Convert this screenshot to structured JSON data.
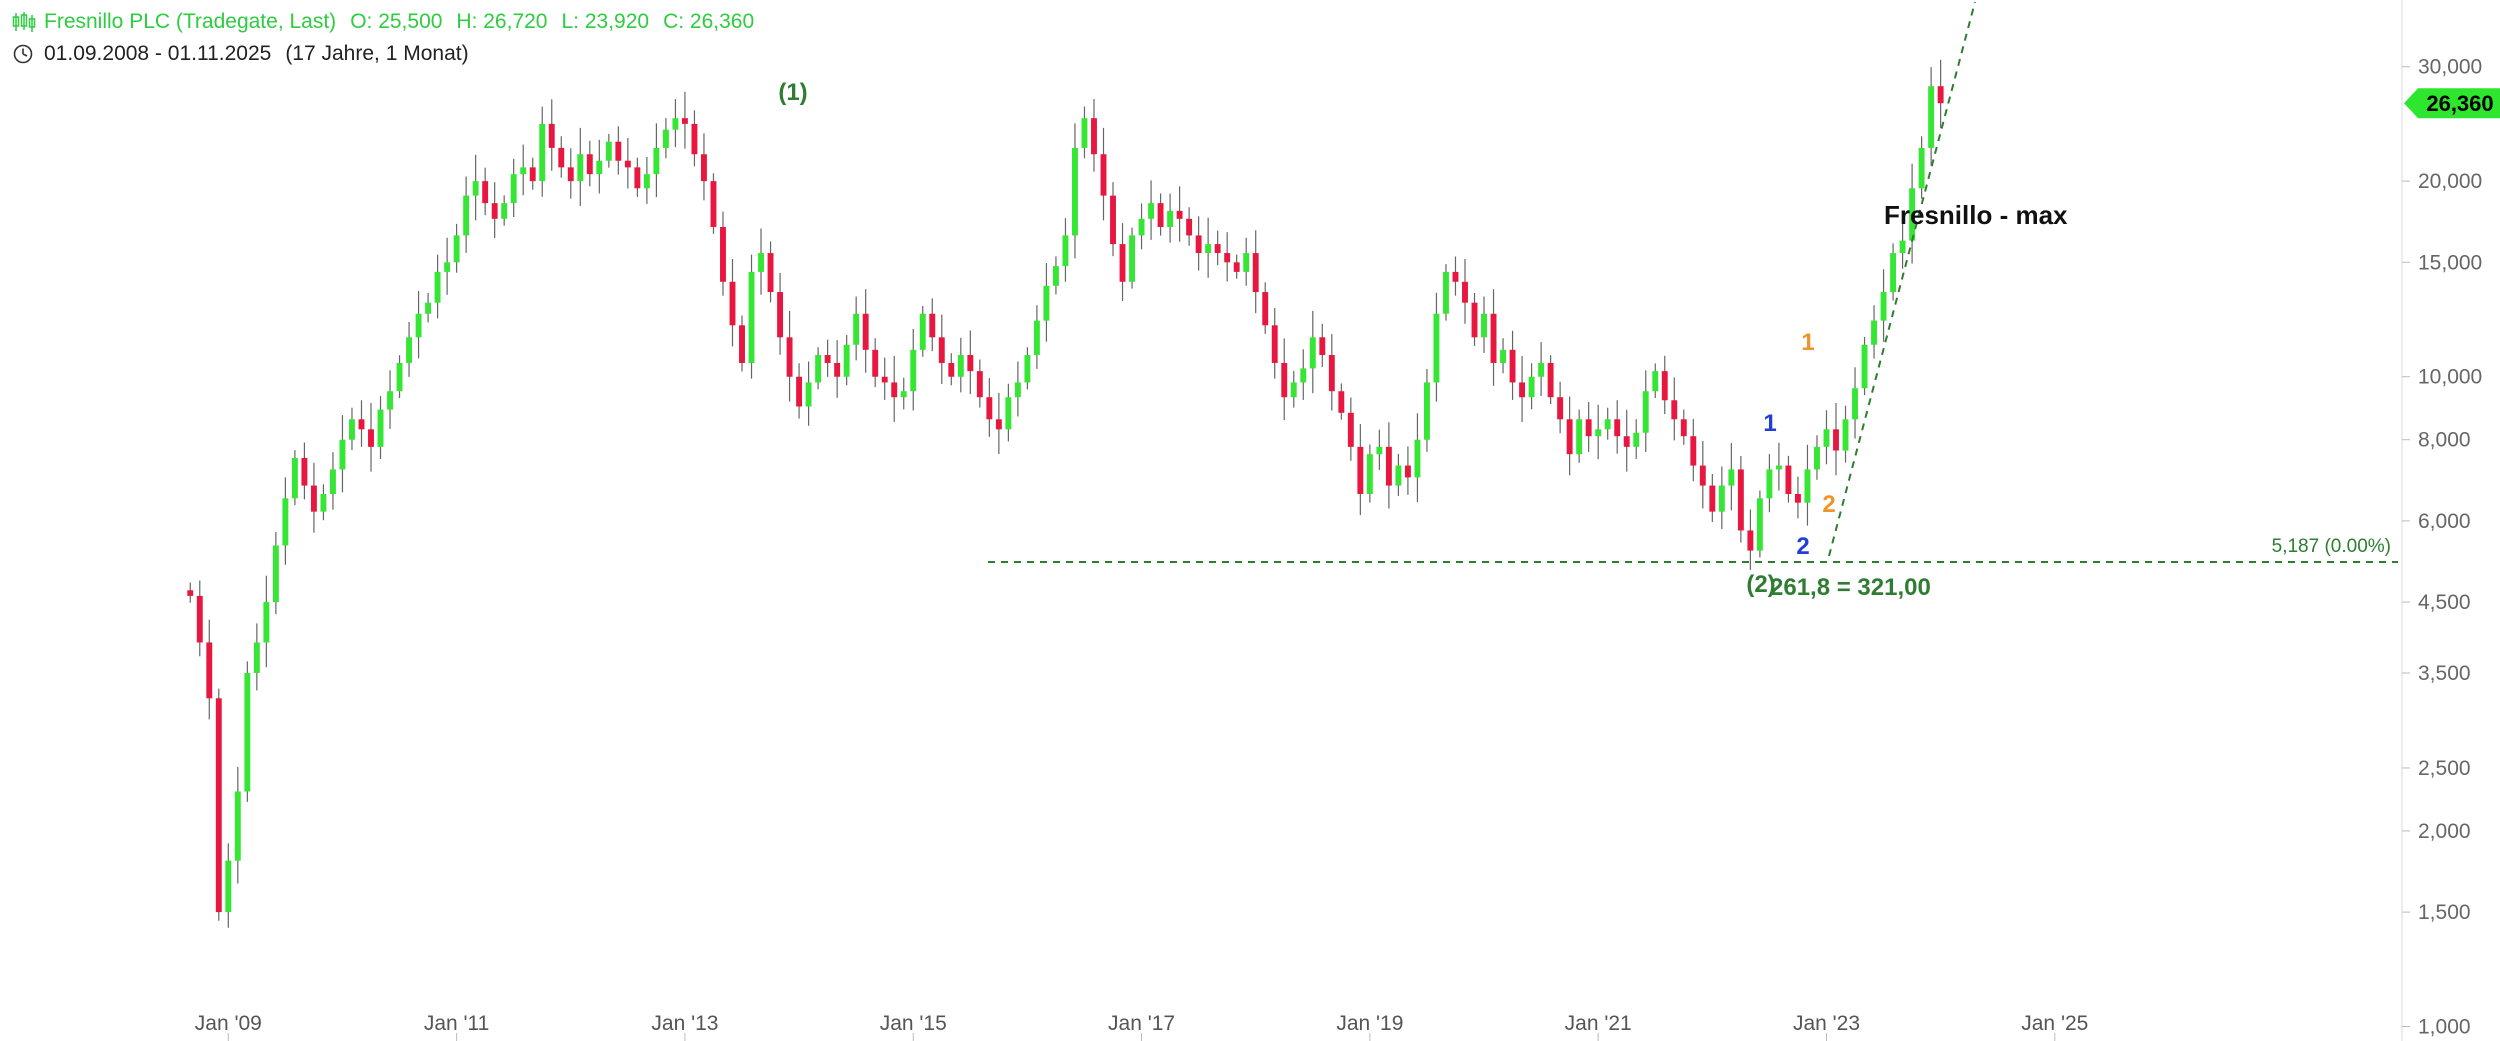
{
  "header": {
    "title": "Fresnillo PLC (Tradegate, Last)",
    "open": "O: 25,500",
    "high": "H: 26,720",
    "low": "L: 23,920",
    "close": "C: 26,360",
    "range": "01.09.2008 - 01.11.2025",
    "duration": "(17 Jahre, 1 Monat)"
  },
  "colors": {
    "up": "#35e635",
    "down": "#e8173f",
    "header": "#2ecc40",
    "annotation_green": "#2e7d32",
    "blue": "#1f3fd6",
    "orange": "#f0932b",
    "price_tag": "#2ee62e"
  },
  "current_price_label": "26,360",
  "chart_data": {
    "type": "candlestick",
    "y_scale": "log",
    "ylim": [
      950,
      38000
    ],
    "xlim": [
      2007.0,
      2028.9
    ],
    "yticks": [
      1000,
      1500,
      2000,
      2500,
      3500,
      4500,
      6000,
      8000,
      10000,
      15000,
      20000,
      30000
    ],
    "ytick_labels": [
      "1,000",
      "1,500",
      "2,000",
      "2,500",
      "3,500",
      "4,500",
      "6,000",
      "8,000",
      "10,000",
      "15,000",
      "20,000",
      "30,000"
    ],
    "xticks": [
      2009,
      2011,
      2013,
      2015,
      2017,
      2019,
      2021,
      2023,
      2025
    ],
    "xtick_labels": [
      "Jan '09",
      "Jan '11",
      "Jan '13",
      "Jan '15",
      "Jan '17",
      "Jan '19",
      "Jan '21",
      "Jan '23",
      "Jan '25"
    ],
    "closes": [
      4600,
      3900,
      3200,
      1500,
      1800,
      2300,
      3500,
      3900,
      4500,
      5500,
      6500,
      7500,
      6800,
      6200,
      6600,
      7200,
      8000,
      8600,
      8300,
      7800,
      8900,
      9500,
      10500,
      11500,
      12500,
      13000,
      14500,
      15000,
      16500,
      19000,
      20000,
      18500,
      17500,
      18500,
      20500,
      21000,
      20000,
      24500,
      22500,
      21000,
      20000,
      22000,
      20500,
      21500,
      23000,
      21500,
      21000,
      19500,
      20500,
      22500,
      24000,
      25000,
      24500,
      22000,
      20000,
      17000,
      14000,
      12000,
      10500,
      14500,
      15500,
      13500,
      11500,
      10000,
      9000,
      9800,
      10800,
      10500,
      10000,
      11200,
      12500,
      11000,
      10000,
      9800,
      9300,
      9500,
      11000,
      12500,
      11500,
      10500,
      10000,
      10800,
      10200,
      9300,
      8600,
      8300,
      9300,
      9800,
      10800,
      12200,
      13800,
      14800,
      16500,
      22500,
      25000,
      22000,
      19000,
      16000,
      14000,
      16500,
      17500,
      18500,
      17000,
      18000,
      17500,
      16500,
      15500,
      16000,
      15500,
      15000,
      14500,
      15500,
      13500,
      12000,
      10500,
      9300,
      9800,
      10300,
      11500,
      10800,
      9500,
      8800,
      7800,
      6600,
      7600,
      7800,
      6800,
      7300,
      7000,
      8000,
      9800,
      12500,
      14500,
      14000,
      13000,
      11500,
      12500,
      10500,
      11000,
      9800,
      9300,
      10000,
      10500,
      9300,
      8600,
      7600,
      8600,
      8100,
      8300,
      8600,
      8100,
      7800,
      8200,
      9500,
      10200,
      9200,
      8600,
      8100,
      7300,
      6800,
      6200,
      6800,
      7200,
      5800,
      5400,
      6500,
      7200,
      7300,
      6600,
      6400,
      7200,
      7800,
      8300,
      7700,
      8600,
      9600,
      11200,
      12200,
      13500,
      15500,
      16200,
      19500,
      22500,
      28000,
      26360
    ],
    "annotations": [
      "(1)",
      "(2)",
      "1",
      "2",
      "1",
      "2",
      "Fresnillo - max",
      "261,8 = 321,00",
      "5,187 (0.00%)"
    ],
    "support_level": 5187
  }
}
